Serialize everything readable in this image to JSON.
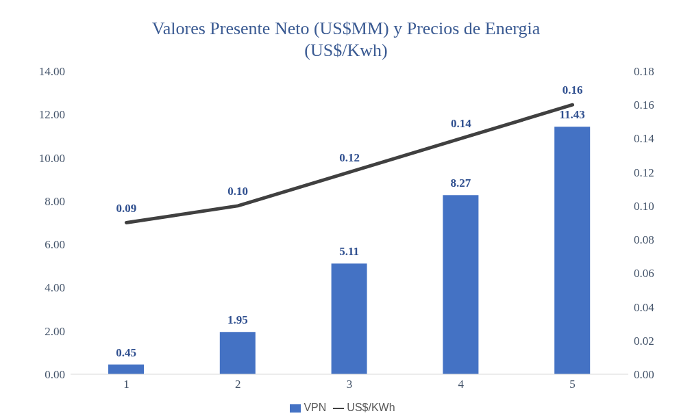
{
  "chart_data": {
    "type": "bar",
    "title": "Valores Presente Neto (US$MM) y Precios de Energia (US$/Kwh)",
    "categories": [
      "1",
      "2",
      "3",
      "4",
      "5"
    ],
    "series": [
      {
        "name": "VPN",
        "color": "#4472c4",
        "values": [
          0.45,
          1.95,
          5.11,
          8.27,
          11.43
        ],
        "value_labels": [
          "0.45",
          "1.95",
          "5.11",
          "8.27",
          "11.43"
        ]
      },
      {
        "name": "US$/KWh",
        "type": "line",
        "axis": "y2",
        "color": "#404040",
        "values": [
          0.09,
          0.1,
          0.12,
          0.14,
          0.16
        ],
        "value_labels": [
          "0.09",
          "0.10",
          "0.12",
          "0.14",
          "0.16"
        ]
      }
    ],
    "ylim": [
      0,
      14
    ],
    "yticks": [
      {
        "value": 0,
        "label": "0.00"
      },
      {
        "value": 2,
        "label": "2.00"
      },
      {
        "value": 4,
        "label": "4.00"
      },
      {
        "value": 6,
        "label": "6.00"
      },
      {
        "value": 8,
        "label": "8.00"
      },
      {
        "value": 10,
        "label": "10.00"
      },
      {
        "value": 12,
        "label": "12.00"
      },
      {
        "value": 14,
        "label": "14.00"
      }
    ],
    "y2lim": [
      0,
      0.18
    ],
    "y2ticks": [
      {
        "value": 0,
        "label": "0.00"
      },
      {
        "value": 0.02,
        "label": "0.02"
      },
      {
        "value": 0.04,
        "label": "0.04"
      },
      {
        "value": 0.06,
        "label": "0.06"
      },
      {
        "value": 0.08,
        "label": "0.08"
      },
      {
        "value": 0.1,
        "label": "0.10"
      },
      {
        "value": 0.12,
        "label": "0.12"
      },
      {
        "value": 0.14,
        "label": "0.14"
      },
      {
        "value": 0.16,
        "label": "0.16"
      },
      {
        "value": 0.18,
        "label": "0.18"
      }
    ],
    "grid": false,
    "legend": "bottom",
    "marker": "none",
    "line_style": "solid"
  }
}
